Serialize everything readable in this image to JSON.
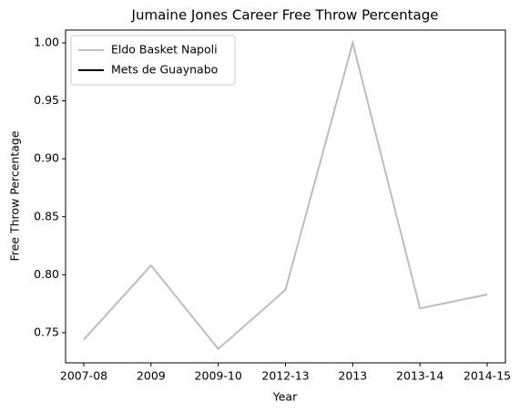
{
  "chart_data": {
    "type": "line",
    "title": "Jumaine Jones Career Free Throw Percentage",
    "xlabel": "Year",
    "ylabel": "Free Throw Percentage",
    "categories": [
      "2007-08",
      "2009",
      "2009-10",
      "2012-13",
      "2013",
      "2013-14",
      "2014-15"
    ],
    "series": [
      {
        "name": "Eldo Basket Napoli",
        "color": "#bdbdbd",
        "values": [
          0.744,
          0.808,
          0.736,
          0.787,
          1.0,
          0.771,
          0.783
        ]
      },
      {
        "name": "Mets de Guaynabo",
        "color": "#000000",
        "values": [
          null,
          null,
          null,
          null,
          null,
          null,
          null
        ]
      }
    ],
    "ylim": [
      0.724,
      1.011
    ],
    "yticks": [
      0.75,
      {
        "value": 0.8,
        "label": "0.80"
      },
      0.85,
      {
        "value": 0.9,
        "label": "0.90"
      },
      0.95,
      {
        "value": 1.0,
        "label": "1.00"
      }
    ],
    "legend": "upper left"
  }
}
